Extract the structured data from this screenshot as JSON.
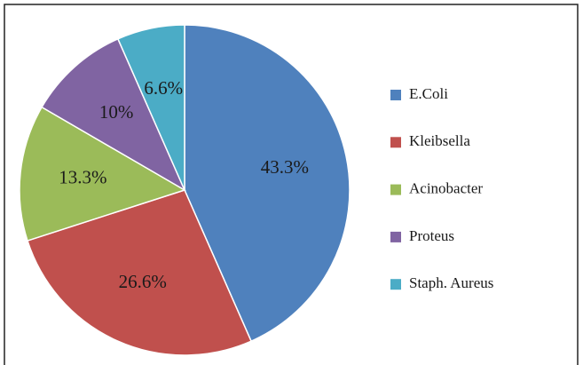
{
  "chart_data": {
    "type": "pie",
    "categories": [
      "E.Coli",
      "Kleibsella",
      "Acinobacter",
      "Proteus",
      "Staph. Aureus"
    ],
    "values": [
      43.3,
      26.6,
      13.3,
      10,
      6.6
    ],
    "value_labels": [
      "43.3%",
      "26.6%",
      "13.3%",
      "10%",
      "6.6%"
    ],
    "colors": [
      "#4f81bd",
      "#c0504d",
      "#9bbb59",
      "#8064a2",
      "#4bacc6"
    ],
    "legend": "right"
  }
}
